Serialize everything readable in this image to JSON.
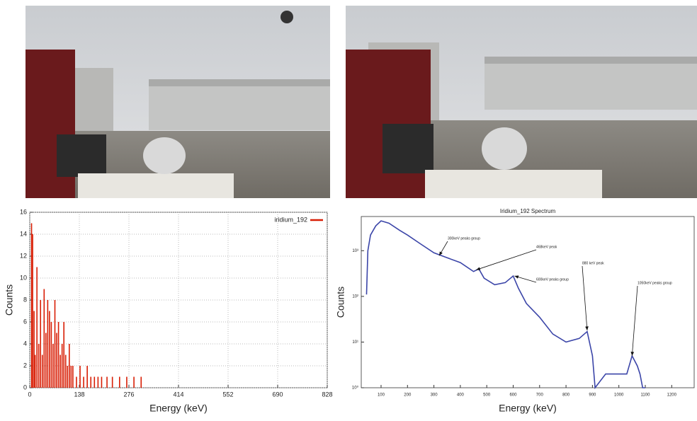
{
  "chart_data": [
    {
      "type": "bar",
      "x": [
        5,
        8,
        12,
        15,
        20,
        25,
        30,
        35,
        40,
        45,
        50,
        55,
        60,
        65,
        70,
        75,
        80,
        85,
        90,
        95,
        100,
        105,
        110,
        115,
        120,
        130,
        140,
        150,
        160,
        170,
        180,
        190,
        200,
        215,
        230,
        250,
        270,
        290,
        310
      ],
      "series": [
        {
          "name": "iridium_192",
          "color": "#d81e05",
          "values": [
            15,
            14,
            7,
            3,
            11,
            4,
            8,
            3,
            9,
            5,
            8,
            7,
            6,
            4,
            8,
            5,
            6,
            3,
            4,
            6,
            3,
            2,
            4,
            2,
            2,
            1,
            2,
            1,
            2,
            1,
            1,
            1,
            1,
            1,
            1,
            1,
            1,
            1,
            1
          ]
        }
      ],
      "xlabel": "Energy (keV)",
      "ylabel": "Counts",
      "xlim": [
        0,
        828
      ],
      "xticks": [
        0,
        138,
        276,
        414,
        552,
        690,
        828
      ],
      "ylim": [
        0,
        16
      ],
      "yticks": [
        0,
        2,
        4,
        6,
        8,
        10,
        12,
        14,
        16
      ],
      "grid": true,
      "legend": "upper right"
    },
    {
      "type": "line",
      "title": "Iridium_192 Spectrum",
      "x": [
        45,
        50,
        60,
        80,
        100,
        130,
        170,
        200,
        250,
        300,
        350,
        400,
        450,
        470,
        490,
        530,
        570,
        600,
        620,
        650,
        700,
        750,
        800,
        850,
        880,
        900,
        910,
        950,
        1000,
        1030,
        1050,
        1070,
        1080,
        1090,
        1100
      ],
      "series": [
        {
          "color": "#3b45a8",
          "values": [
            110,
            1000,
            2200,
            3500,
            4500,
            4000,
            2800,
            2200,
            1400,
            900,
            700,
            550,
            350,
            400,
            250,
            180,
            200,
            280,
            150,
            70,
            35,
            15,
            10,
            12,
            17,
            5,
            1,
            2,
            2,
            2,
            5,
            3,
            2,
            1,
            1
          ]
        }
      ],
      "xlabel": "Energy (keV)",
      "ylabel": "Counts",
      "xlim": [
        25,
        1285
      ],
      "xticks": [
        100,
        200,
        300,
        400,
        500,
        600,
        700,
        800,
        900,
        1000,
        1100,
        1200
      ],
      "ylim": [
        1,
        5600
      ],
      "log_y": true,
      "yticks": [
        {
          "value": 1,
          "label": "10⁰"
        },
        {
          "value": 10,
          "label": "10¹"
        },
        {
          "value": 100,
          "label": "10²"
        },
        {
          "value": 1000,
          "label": "10³"
        }
      ],
      "annotations": [
        {
          "text": "300keV peaks group",
          "x": 320,
          "y": 780
        },
        {
          "text": "468keV peak",
          "x": 460,
          "y": 380
        },
        {
          "text": "600keV peaks group",
          "x": 605,
          "y": 280
        },
        {
          "text": "880 keV peak",
          "x": 880,
          "y": 18
        },
        {
          "text": "1050keV peaks group",
          "x": 1050,
          "y": 5
        }
      ]
    }
  ]
}
